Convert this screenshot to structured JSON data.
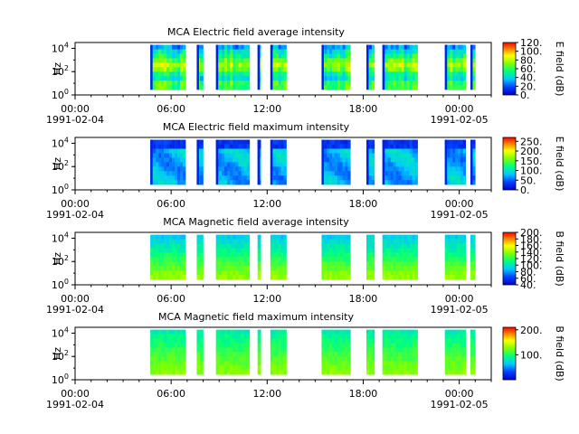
{
  "chart_data": [
    {
      "type": "heatmap",
      "title": "MCA  Electric field average intensity",
      "ylabel": "Hz",
      "y_ticks": [
        {
          "base": "10",
          "exp": "0"
        },
        {
          "base": "10",
          "exp": "2"
        },
        {
          "base": "10",
          "exp": "4"
        }
      ],
      "x_ticks": [
        {
          "time": "00:00",
          "date": "1991-02-04"
        },
        {
          "time": "06:00",
          "date": ""
        },
        {
          "time": "12:00",
          "date": ""
        },
        {
          "time": "18:00",
          "date": ""
        },
        {
          "time": "00:00",
          "date": "1991-02-05"
        }
      ],
      "colorbar_label": "E field (dB)",
      "colorbar_ticks": [
        "0.",
        "20.",
        "40.",
        "60.",
        "80.",
        "100.",
        "120."
      ],
      "colorbar_range": [
        0,
        120
      ],
      "ylim_log10": [
        0,
        4.5
      ],
      "xlim_hours": [
        0,
        26
      ],
      "data_intervals_hours": [
        [
          4.7,
          6.9
        ],
        [
          7.6,
          8.0
        ],
        [
          8.8,
          10.9
        ],
        [
          11.4,
          11.6
        ],
        [
          12.2,
          13.2
        ],
        [
          15.4,
          17.2
        ],
        [
          18.2,
          18.7
        ],
        [
          19.2,
          21.4
        ],
        [
          23.1,
          24.4
        ],
        [
          24.7,
          25.0
        ]
      ]
    },
    {
      "type": "heatmap",
      "title": "MCA  Electric field maximum intensity",
      "ylabel": "Hz",
      "y_ticks": [
        {
          "base": "10",
          "exp": "0"
        },
        {
          "base": "10",
          "exp": "2"
        },
        {
          "base": "10",
          "exp": "4"
        }
      ],
      "x_ticks": [
        {
          "time": "00:00",
          "date": "1991-02-04"
        },
        {
          "time": "06:00",
          "date": ""
        },
        {
          "time": "12:00",
          "date": ""
        },
        {
          "time": "18:00",
          "date": ""
        },
        {
          "time": "00:00",
          "date": "1991-02-05"
        }
      ],
      "colorbar_label": "E field (dB)",
      "colorbar_ticks": [
        "0.",
        "50.",
        "100.",
        "150.",
        "200.",
        "250."
      ],
      "colorbar_range": [
        0,
        270
      ],
      "ylim_log10": [
        0,
        4.5
      ],
      "xlim_hours": [
        0,
        26
      ],
      "data_intervals_hours": [
        [
          4.7,
          6.9
        ],
        [
          7.6,
          8.0
        ],
        [
          8.8,
          10.9
        ],
        [
          11.4,
          11.6
        ],
        [
          12.2,
          13.2
        ],
        [
          15.4,
          17.2
        ],
        [
          18.2,
          18.7
        ],
        [
          19.2,
          21.4
        ],
        [
          23.1,
          24.4
        ],
        [
          24.7,
          25.0
        ]
      ]
    },
    {
      "type": "heatmap",
      "title": "MCA  Magnetic field average intensity",
      "ylabel": "Hz",
      "y_ticks": [
        {
          "base": "10",
          "exp": "0"
        },
        {
          "base": "10",
          "exp": "2"
        },
        {
          "base": "10",
          "exp": "4"
        }
      ],
      "x_ticks": [
        {
          "time": "00:00",
          "date": "1991-02-04"
        },
        {
          "time": "06:00",
          "date": ""
        },
        {
          "time": "12:00",
          "date": ""
        },
        {
          "time": "18:00",
          "date": ""
        },
        {
          "time": "00:00",
          "date": "1991-02-05"
        }
      ],
      "colorbar_label": "B field (dB)",
      "colorbar_ticks": [
        "40.",
        "60.",
        "80.",
        "100.",
        "120.",
        "140.",
        "160.",
        "180.",
        "200."
      ],
      "colorbar_range": [
        40,
        200
      ],
      "ylim_log10": [
        0,
        4.5
      ],
      "xlim_hours": [
        0,
        26
      ],
      "data_intervals_hours": [
        [
          4.7,
          6.9
        ],
        [
          7.6,
          8.0
        ],
        [
          8.8,
          10.9
        ],
        [
          11.4,
          11.6
        ],
        [
          12.2,
          13.2
        ],
        [
          15.4,
          17.2
        ],
        [
          18.2,
          18.7
        ],
        [
          19.2,
          21.4
        ],
        [
          23.1,
          24.4
        ],
        [
          24.7,
          25.0
        ]
      ]
    },
    {
      "type": "heatmap",
      "title": "MCA  Magnetic field maximum intensity",
      "ylabel": "Hz",
      "y_ticks": [
        {
          "base": "10",
          "exp": "0"
        },
        {
          "base": "10",
          "exp": "2"
        },
        {
          "base": "10",
          "exp": "4"
        }
      ],
      "x_ticks": [
        {
          "time": "00:00",
          "date": "1991-02-04"
        },
        {
          "time": "06:00",
          "date": ""
        },
        {
          "time": "12:00",
          "date": ""
        },
        {
          "time": "18:00",
          "date": ""
        },
        {
          "time": "00:00",
          "date": "1991-02-05"
        }
      ],
      "colorbar_label": "B field (dB)",
      "colorbar_ticks": [
        "100.",
        "200."
      ],
      "colorbar_range": [
        0,
        210
      ],
      "ylim_log10": [
        0,
        4.5
      ],
      "xlim_hours": [
        0,
        26
      ],
      "data_intervals_hours": [
        [
          4.7,
          6.9
        ],
        [
          7.6,
          8.0
        ],
        [
          8.8,
          10.9
        ],
        [
          11.4,
          11.6
        ],
        [
          12.2,
          13.2
        ],
        [
          15.4,
          17.2
        ],
        [
          18.2,
          18.7
        ],
        [
          19.2,
          21.4
        ],
        [
          23.1,
          24.4
        ],
        [
          24.7,
          25.0
        ]
      ]
    }
  ]
}
